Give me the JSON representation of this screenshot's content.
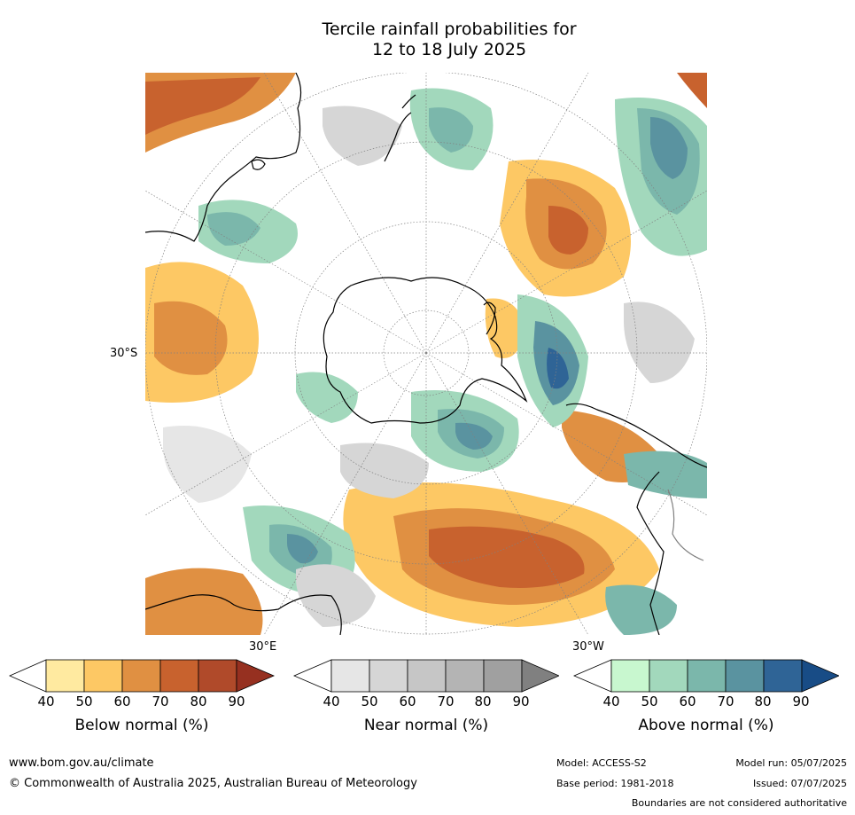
{
  "title": {
    "line1": "Tercile rainfall probabilities for",
    "line2": "12 to 18 July 2025"
  },
  "map": {
    "projection": "south polar stereographic",
    "lat_label": "30°S",
    "lon_labels": [
      "30°E",
      "30°W"
    ],
    "colors": {
      "ocean_background": "#ffffff",
      "coastline": "#000000",
      "border": "#808080",
      "gridline": "#808080"
    }
  },
  "colorbars": [
    {
      "name": "below",
      "title": "Below normal (%)",
      "ticks": [
        "40",
        "50",
        "60",
        "70",
        "80",
        "90"
      ],
      "colors": [
        "#ffffff",
        "#ffeaa0",
        "#fdc864",
        "#e09042",
        "#c8622e",
        "#b04a2a",
        "#963020"
      ]
    },
    {
      "name": "near",
      "title": "Near normal (%)",
      "ticks": [
        "40",
        "50",
        "60",
        "70",
        "80",
        "90"
      ],
      "colors": [
        "#ffffff",
        "#e6e6e6",
        "#d6d6d6",
        "#c6c6c6",
        "#b4b4b4",
        "#a0a0a0",
        "#808080"
      ]
    },
    {
      "name": "above",
      "title": "Above normal (%)",
      "ticks": [
        "40",
        "50",
        "60",
        "70",
        "80",
        "90"
      ],
      "colors": [
        "#ffffff",
        "#c8f7cf",
        "#a2d8bc",
        "#7bb7ab",
        "#5a93a0",
        "#2f6496",
        "#184c86"
      ]
    }
  ],
  "footer": {
    "url": "www.bom.gov.au/climate",
    "copyright": "© Commonwealth of Australia 2025, Australian Bureau of Meteorology",
    "model": "Model: ACCESS-S2",
    "base_period": "Base period: 1981-2018",
    "model_run": "Model run: 05/07/2025",
    "issued": "Issued: 07/07/2025",
    "disclaimer": "Boundaries are not considered authoritative"
  }
}
